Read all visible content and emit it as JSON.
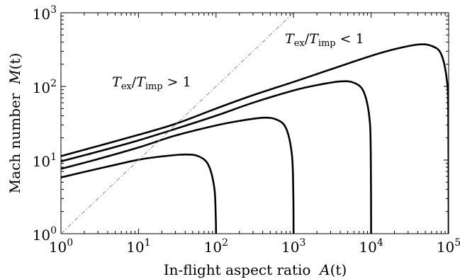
{
  "chart_data": {
    "type": "line",
    "xlabel": "In-flight aspect ratio  A(t)",
    "ylabel": "Mach number  M(t)",
    "xscale": "log",
    "yscale": "log",
    "xlim": [
      1,
      100000
    ],
    "ylim": [
      1,
      1000
    ],
    "grid": false,
    "x_ticks": [
      {
        "value": 1,
        "base": "10",
        "exp": "0"
      },
      {
        "value": 10,
        "base": "10",
        "exp": "1"
      },
      {
        "value": 100,
        "base": "10",
        "exp": "2"
      },
      {
        "value": 1000,
        "base": "10",
        "exp": "3"
      },
      {
        "value": 10000,
        "base": "10",
        "exp": "4"
      },
      {
        "value": 100000,
        "base": "10",
        "exp": "5"
      }
    ],
    "y_ticks": [
      {
        "value": 1,
        "base": "10",
        "exp": "0"
      },
      {
        "value": 10,
        "base": "10",
        "exp": "1"
      },
      {
        "value": 100,
        "base": "10",
        "exp": "2"
      },
      {
        "value": 1000,
        "base": "10",
        "exp": "3"
      }
    ],
    "series": [
      {
        "color": "#000000",
        "style": "solid",
        "x": [
          1,
          2,
          5,
          10,
          20,
          40,
          60,
          80,
          95,
          99,
          100
        ],
        "y": [
          5.8,
          6.9,
          8.6,
          10.1,
          11.2,
          11.9,
          11.2,
          8.5,
          4.2,
          1.8,
          1.0
        ]
      },
      {
        "color": "#000000",
        "style": "solid",
        "x": [
          1,
          3,
          10,
          30,
          100,
          200,
          400,
          600,
          800,
          950,
          990,
          1000
        ],
        "y": [
          7.6,
          10.3,
          14.8,
          21.5,
          29.5,
          34,
          37.5,
          35.5,
          27,
          12,
          4,
          1.0
        ]
      },
      {
        "color": "#000000",
        "style": "solid",
        "x": [
          1,
          3,
          10,
          30,
          100,
          300,
          1000,
          2000,
          4000,
          6000,
          8000,
          9500,
          9900,
          10000
        ],
        "y": [
          9.6,
          13,
          18.5,
          26.5,
          40,
          60,
          88,
          104,
          117,
          112,
          85,
          38,
          12,
          1.0
        ]
      },
      {
        "color": "#000000",
        "style": "solid",
        "x": [
          1,
          3,
          10,
          30,
          100,
          300,
          1000,
          3000,
          10000,
          20000,
          40000,
          60000,
          80000,
          95000,
          99000,
          100000
        ],
        "y": [
          11.3,
          15.5,
          22,
          31,
          50,
          76,
          115,
          170,
          260,
          320,
          370,
          355,
          275,
          120,
          40,
          1.0
        ]
      },
      {
        "color": "#888888",
        "style": "dashdot",
        "x": [
          1,
          1000
        ],
        "y": [
          1,
          1000
        ]
      }
    ],
    "annotations": [
      {
        "text": "T_ex/T_imp > 1",
        "x": 1.35,
        "y": 100
      },
      {
        "text": "T_ex/T_imp < 1",
        "x": 180,
        "y": 330
      }
    ]
  },
  "annotations_text": {
    "upper_left": {
      "T": "T",
      "sub1": "ex",
      "slash": "/",
      "T2": "T",
      "sub2": "imp",
      "rel": " > 1"
    },
    "upper_right": {
      "T": "T",
      "sub1": "ex",
      "slash": "/",
      "T2": "T",
      "sub2": "imp",
      "rel": " < 1"
    }
  },
  "axis_titles": {
    "x": {
      "text": "In-flight aspect ratio  ",
      "var": "A",
      "arg": "(t)"
    },
    "y": {
      "text": "Mach number  ",
      "var": "M",
      "arg": "(t)"
    }
  }
}
